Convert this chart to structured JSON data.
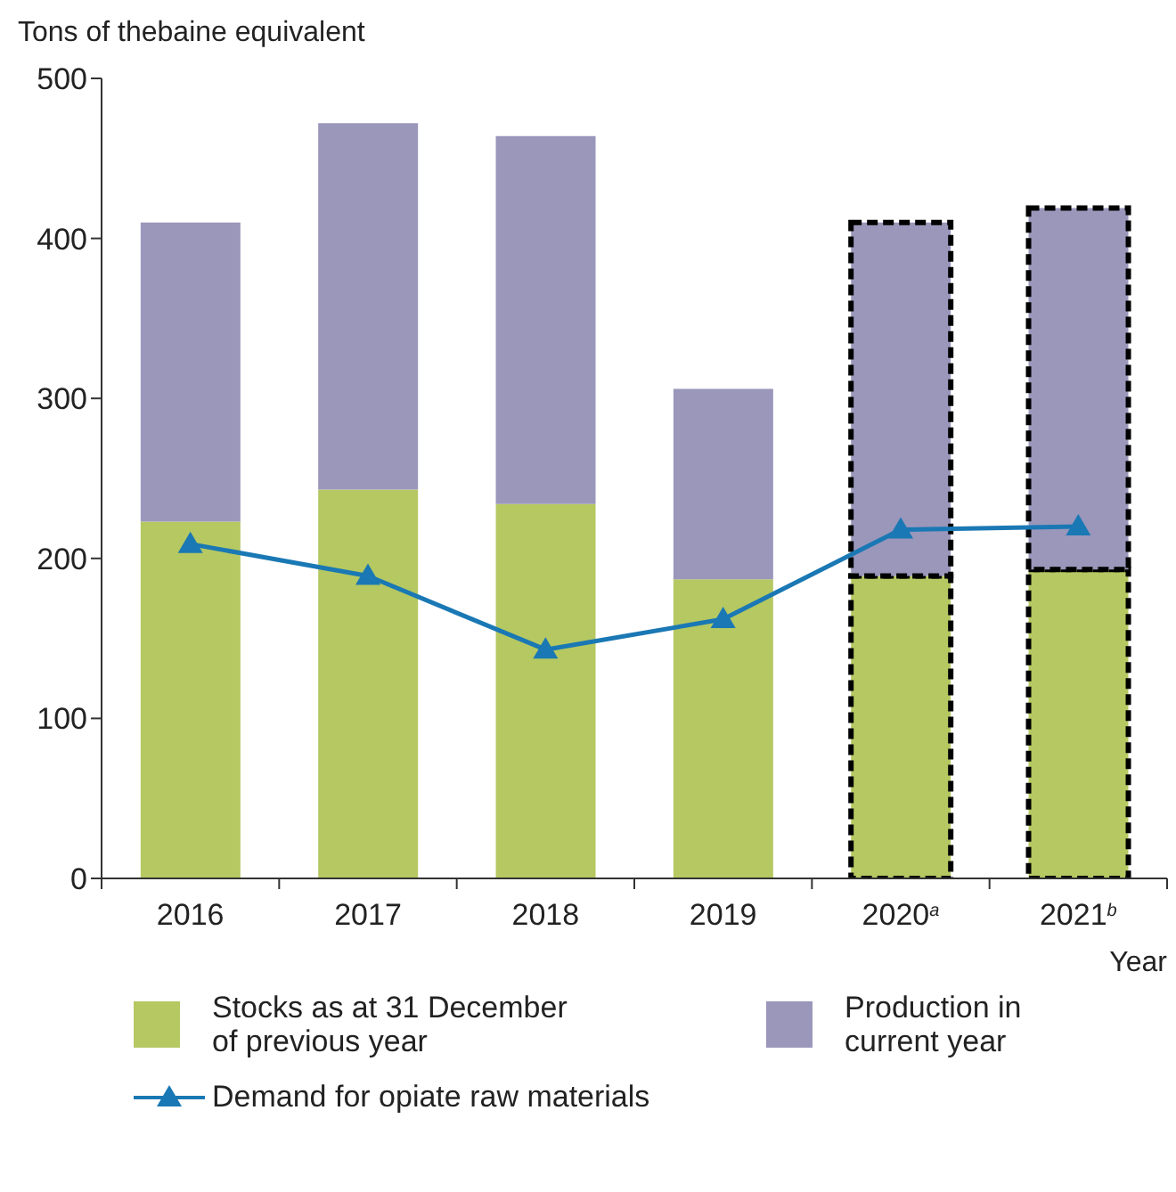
{
  "chart_data": {
    "type": "bar",
    "stacked": true,
    "ylabel": "Tons of thebaine equivalent",
    "xlabel": "Year",
    "categories": [
      "2016",
      "2017",
      "2018",
      "2019",
      "2020$^{a}$",
      "2021$^{b}$"
    ],
    "series": [
      {
        "name": "Stocks as at 31 December of previous year",
        "color": "#b5c862",
        "values": [
          223,
          243,
          234,
          187,
          189,
          193
        ]
      },
      {
        "name": "Production in current year",
        "color": "#9a97bb",
        "values": [
          187,
          229,
          230,
          119,
          221,
          226
        ]
      },
      {
        "name": "Demand for opiate raw materials",
        "type": "line",
        "color": "#1a78b4",
        "marker": "triangle",
        "line_style": "solid",
        "values": [
          209,
          189,
          143,
          162,
          218,
          220
        ]
      }
    ],
    "ylim": [
      0,
      500
    ],
    "yticks": [
      0,
      100,
      200,
      300,
      400,
      500
    ],
    "legend": "bottom"
  }
}
